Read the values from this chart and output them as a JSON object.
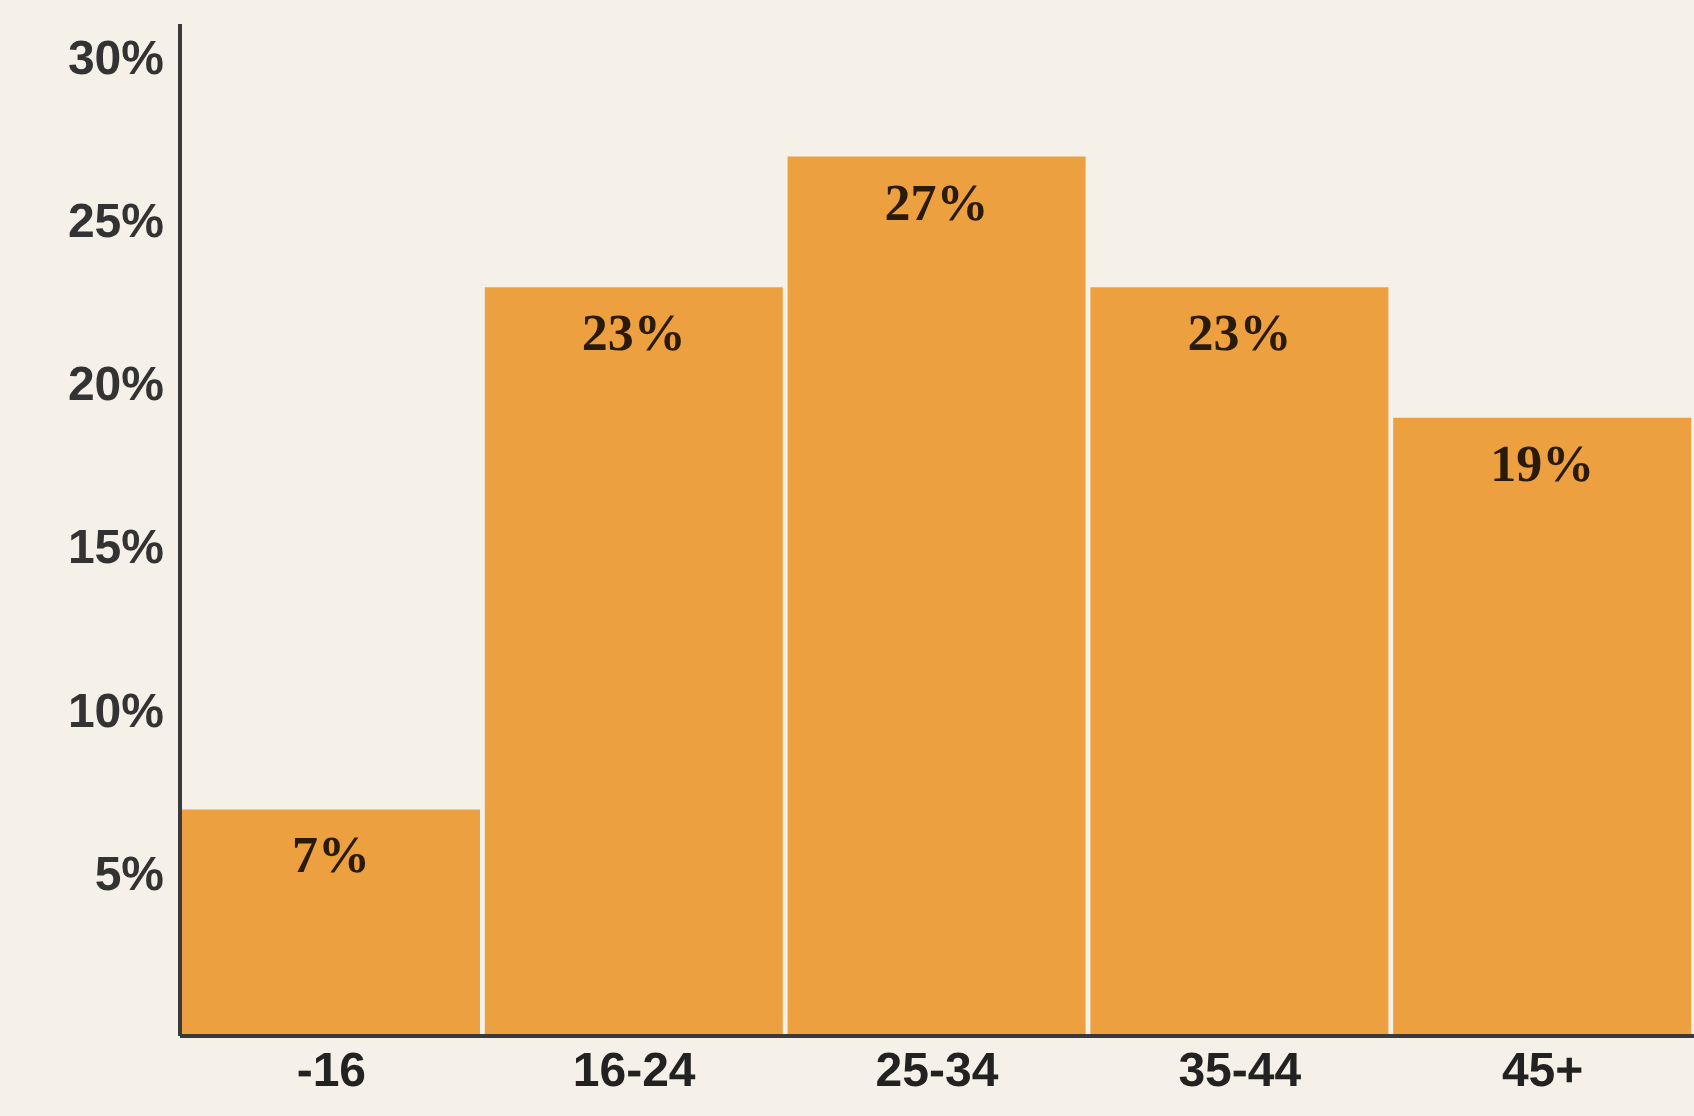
{
  "chart_data": {
    "type": "bar",
    "categories": [
      "-16",
      "16-24",
      "25-34",
      "35-44",
      "45+"
    ],
    "values": [
      7,
      23,
      27,
      23,
      19
    ],
    "color": "#eda040",
    "ylim": [
      0,
      31
    ],
    "yticks": [
      {
        "value": 5,
        "label": "5%"
      },
      {
        "value": 10,
        "label": "10%"
      },
      {
        "value": 15,
        "label": "15%"
      },
      {
        "value": 20,
        "label": "20%"
      },
      {
        "value": 25,
        "label": "25%"
      },
      {
        "value": 30,
        "label": "30%"
      }
    ],
    "value_labels": [
      "7%",
      "23%",
      "27%",
      "23%",
      "19%"
    ],
    "grid": false,
    "legend": false
  }
}
